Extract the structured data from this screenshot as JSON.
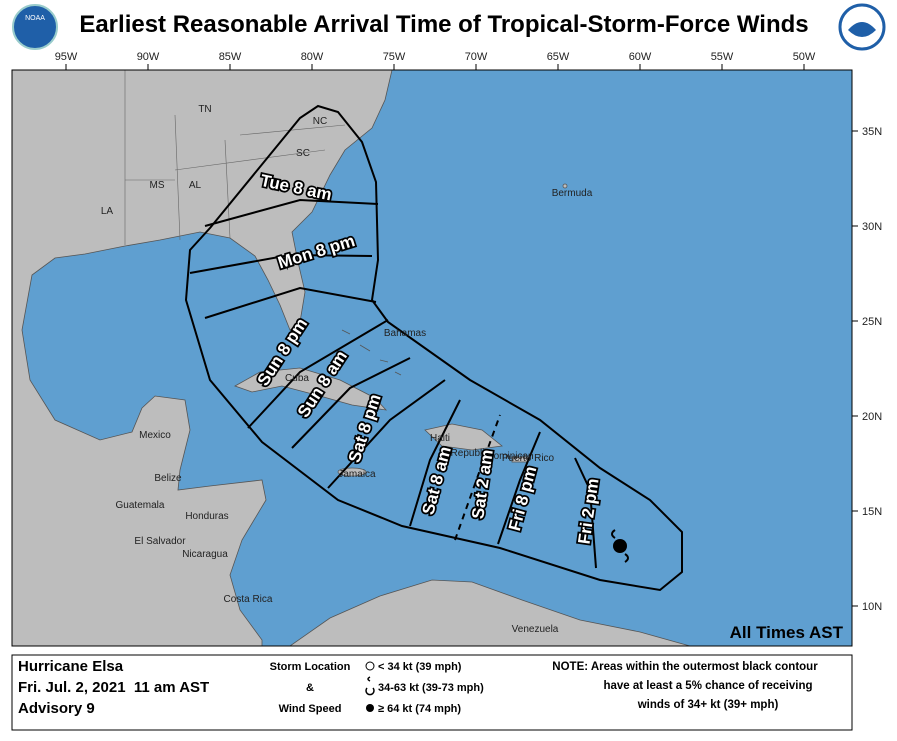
{
  "header": {
    "title": "Earliest Reasonable Arrival Time of Tropical-Storm-Force Winds",
    "logo_left": "NOAA"
  },
  "map": {
    "lon_labels": [
      "95W",
      "90W",
      "85W",
      "80W",
      "75W",
      "70W",
      "65W",
      "60W",
      "55W",
      "50W"
    ],
    "lat_labels": [
      "35N",
      "30N",
      "25N",
      "20N",
      "15N",
      "10N"
    ],
    "places": [
      "NC",
      "TN",
      "SC",
      "MS",
      "AL",
      "LA",
      "Bermuda",
      "Bahamas",
      "Cuba",
      "Haiti",
      "Dominican",
      "Republic",
      "Puerto Rico",
      "Jamaica",
      "Mexico",
      "Belize",
      "Guatemala",
      "Honduras",
      "El Salvador",
      "Nicaragua",
      "Costa Rica",
      "Venezuela"
    ],
    "contour_labels": [
      "Tue 8 am",
      "Mon 8 pm",
      "Sun 8 pm",
      "Sun 8 am",
      "Sat 8 pm",
      "Sat 8 am",
      "Sat 2 am",
      "Fri 8 pm",
      "Fri 2 pm"
    ],
    "times_note": "All Times AST"
  },
  "footer": {
    "storm": "Hurricane Elsa",
    "date": "Fri. Jul. 2, 2021  11 am AST",
    "advisory": "Advisory 9",
    "legend_title": [
      "Storm Location",
      "&",
      "Wind Speed"
    ],
    "legend_items": [
      "< 34 kt (39 mph)",
      "34-63 kt (39-73 mph)",
      "≥ 64 kt (74 mph)"
    ],
    "note": [
      "NOTE: Areas within the outermost black contour",
      "have at least a 5% chance of receiving",
      "winds of 34+ kt (39+ mph)"
    ]
  }
}
